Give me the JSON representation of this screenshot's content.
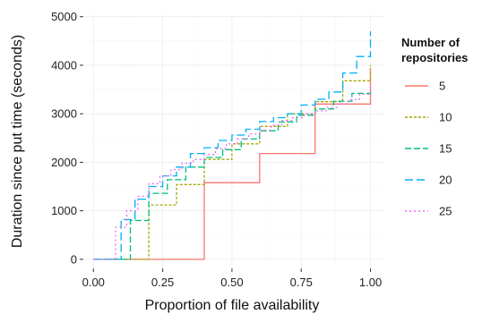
{
  "chart_data": {
    "type": "line",
    "step": true,
    "xlabel": "Proportion of file availability",
    "ylabel": "Duration since put time (seconds)",
    "xlim": [
      -0.03,
      1.05
    ],
    "ylim": [
      -150,
      5050
    ],
    "xticks": [
      0.0,
      0.25,
      0.5,
      0.75,
      1.0
    ],
    "xtick_labels": [
      "0.00",
      "0.25",
      "0.50",
      "0.75",
      "1.00"
    ],
    "yticks": [
      0,
      1000,
      2000,
      3000,
      4000,
      5000
    ],
    "ytick_labels": [
      "0",
      "1000",
      "2000",
      "3000",
      "4000",
      "5000"
    ],
    "grid": true,
    "legend": {
      "title": "Number of repositories",
      "title_lines": [
        "Number of",
        "repositories"
      ],
      "position": "right"
    },
    "series": [
      {
        "name": "5",
        "color": "#F8766D",
        "dash": "solid",
        "x": [
          0.0,
          0.2,
          0.2,
          0.4,
          0.4,
          0.6,
          0.6,
          0.8,
          0.8,
          1.0,
          1.0
        ],
        "y": [
          0,
          0,
          0,
          0,
          1580,
          1580,
          2180,
          2180,
          3200,
          3200,
          3900
        ]
      },
      {
        "name": "10",
        "color": "#A3A500",
        "dash": "3,2",
        "x": [
          0.0,
          0.1,
          0.2,
          0.2,
          0.3,
          0.3,
          0.4,
          0.4,
          0.5,
          0.5,
          0.6,
          0.6,
          0.7,
          0.7,
          0.8,
          0.8,
          0.9,
          0.9,
          1.0,
          1.0
        ],
        "y": [
          0,
          0,
          0,
          1120,
          1120,
          1540,
          1540,
          2060,
          2060,
          2380,
          2380,
          2740,
          2740,
          3000,
          3000,
          3250,
          3250,
          3680,
          3680,
          4000
        ]
      },
      {
        "name": "15",
        "color": "#00BF7D",
        "dash": "7,3",
        "x": [
          0.0,
          0.0667,
          0.1333,
          0.1333,
          0.2,
          0.2,
          0.2667,
          0.2667,
          0.3333,
          0.3333,
          0.4,
          0.4,
          0.4667,
          0.4667,
          0.5333,
          0.5333,
          0.6,
          0.6,
          0.6667,
          0.6667,
          0.7333,
          0.7333,
          0.8,
          0.8,
          0.8667,
          0.8667,
          0.9333,
          0.9333,
          1.0,
          1.0
        ],
        "y": [
          0,
          0,
          0,
          800,
          800,
          1360,
          1360,
          1640,
          1640,
          1900,
          1900,
          2100,
          2100,
          2260,
          2260,
          2480,
          2480,
          2650,
          2650,
          2830,
          2830,
          2970,
          2970,
          3100,
          3100,
          3260,
          3260,
          3420,
          3420,
          3530
        ]
      },
      {
        "name": "20",
        "color": "#00B0F6",
        "dash": "9,4",
        "x": [
          0.0,
          0.05,
          0.1,
          0.1,
          0.15,
          0.15,
          0.2,
          0.2,
          0.25,
          0.25,
          0.3,
          0.3,
          0.35,
          0.35,
          0.4,
          0.4,
          0.45,
          0.45,
          0.5,
          0.5,
          0.55,
          0.55,
          0.6,
          0.6,
          0.65,
          0.65,
          0.7,
          0.7,
          0.75,
          0.75,
          0.8,
          0.8,
          0.85,
          0.85,
          0.9,
          0.9,
          0.95,
          0.95,
          1.0,
          1.0
        ],
        "y": [
          0,
          0,
          0,
          820,
          820,
          1240,
          1240,
          1500,
          1500,
          1720,
          1720,
          1900,
          1900,
          2180,
          2180,
          2300,
          2300,
          2450,
          2450,
          2560,
          2560,
          2680,
          2680,
          2840,
          2840,
          2920,
          2920,
          3000,
          3000,
          3180,
          3180,
          3300,
          3300,
          3450,
          3450,
          3840,
          3840,
          4180,
          4180,
          4700
        ]
      },
      {
        "name": "25",
        "color": "#E76BF3",
        "dash": "2,3",
        "x": [
          0.0,
          0.04,
          0.08,
          0.08,
          0.12,
          0.12,
          0.16,
          0.16,
          0.2,
          0.2,
          0.24,
          0.24,
          0.28,
          0.28,
          0.32,
          0.32,
          0.36,
          0.36,
          0.4,
          0.4,
          0.44,
          0.44,
          0.48,
          0.48,
          0.52,
          0.52,
          0.56,
          0.56,
          0.6,
          0.6,
          0.64,
          0.64,
          0.68,
          0.68,
          0.72,
          0.72,
          0.76,
          0.76,
          0.8,
          0.8,
          0.84,
          0.84,
          0.88,
          0.88,
          0.92,
          0.92,
          0.96,
          0.96,
          1.0,
          1.0
        ],
        "y": [
          0,
          0,
          0,
          660,
          660,
          1000,
          1000,
          1300,
          1300,
          1560,
          1560,
          1720,
          1720,
          1850,
          1850,
          1980,
          1980,
          2060,
          2060,
          2160,
          2160,
          2280,
          2280,
          2380,
          2380,
          2480,
          2480,
          2580,
          2580,
          2660,
          2660,
          2760,
          2760,
          2860,
          2860,
          2920,
          2920,
          3000,
          3000,
          3060,
          3060,
          3130,
          3130,
          3200,
          3200,
          3290,
          3290,
          3400,
          3400,
          3600
        ]
      }
    ]
  }
}
